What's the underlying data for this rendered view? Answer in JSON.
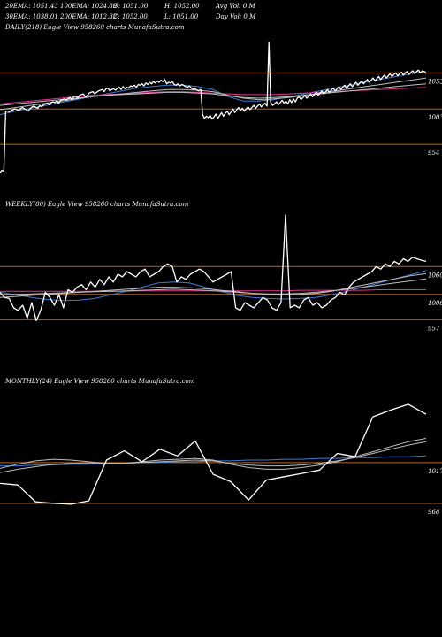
{
  "header": {
    "row1": [
      {
        "label": "20EMA: 1051.43"
      },
      {
        "label": "100EMA: 1024.89"
      },
      {
        "label": "O: 1051.00"
      },
      {
        "label": "H: 1052.00"
      },
      {
        "label": "Avg Vol: 0  M"
      }
    ],
    "row2": [
      {
        "label": "30EMA: 1038.01"
      },
      {
        "label": "200EMA: 1012.32"
      },
      {
        "label": "C: 1052.00"
      },
      {
        "label": "L: 1051.00"
      },
      {
        "label": "Day Vol: 0  M"
      }
    ]
  },
  "colors": {
    "background": "#000000",
    "price": "#ffffff",
    "level": "#b5651d",
    "ema_blue": "#3a7bd5",
    "ema_pink": "#e0338f",
    "ema_grey": "#bdbdbd"
  },
  "chart_data": [
    {
      "type": "line",
      "title": "DAILY(218) Eagle  View  958260  charts MunafaSutra.com",
      "levels": [
        {
          "value": 1053,
          "label": "1053"
        },
        {
          "value": 1003,
          "label": "1003"
        },
        {
          "value": 954,
          "label": "954"
        }
      ],
      "ylim": [
        915,
        1105
      ],
      "series": [
        {
          "role": "price",
          "color": "#ffffff",
          "values": [
            915,
            918,
            917,
            1000,
            1000,
            999,
            1001,
            1002,
            1003,
            1002,
            1001,
            1004,
            1005,
            1003,
            1002,
            1000,
            1004,
            1006,
            1007,
            1005,
            1004,
            1008,
            1006,
            1009,
            1010,
            1011,
            1009,
            1012,
            1013,
            1012,
            1014,
            1011,
            1015,
            1016,
            1017,
            1015,
            1018,
            1019,
            1016,
            1020,
            1021,
            1018,
            1022,
            1023,
            1024,
            1020,
            1021,
            1025,
            1026,
            1027,
            1024,
            1026,
            1028,
            1029,
            1030,
            1027,
            1031,
            1032,
            1028,
            1030,
            1031,
            1029,
            1032,
            1033,
            1030,
            1034,
            1031,
            1033,
            1032,
            1035,
            1034,
            1036,
            1033,
            1037,
            1036,
            1038,
            1035,
            1039,
            1037,
            1040,
            1038,
            1041,
            1039,
            1042,
            1040,
            1043,
            1041,
            1044,
            1038,
            1040,
            1039,
            1041,
            1037,
            1036,
            1038,
            1035,
            1037,
            1036,
            1034,
            1033,
            1035,
            1032,
            1030,
            1031,
            1029,
            1028,
            1030,
            995,
            990,
            993,
            991,
            994,
            989,
            992,
            996,
            990,
            994,
            998,
            993,
            997,
            1000,
            995,
            999,
            1003,
            998,
            1002,
            1005,
            1001,
            1004,
            1000,
            1003,
            1006,
            1002,
            1005,
            1008,
            1004,
            1007,
            1010,
            1006,
            1009,
            1011,
            1007,
            1095,
            1012,
            1008,
            1010,
            1013,
            1009,
            1012,
            1015,
            1011,
            1014,
            1010,
            1016,
            1012,
            1017,
            1013,
            1018,
            1020,
            1016,
            1019,
            1022,
            1018,
            1021,
            1024,
            1020,
            1023,
            1026,
            1022,
            1025,
            1028,
            1024,
            1027,
            1030,
            1026,
            1029,
            1032,
            1028,
            1031,
            1034,
            1030,
            1033,
            1036,
            1032,
            1035,
            1038,
            1034,
            1037,
            1040,
            1036,
            1039,
            1042,
            1038,
            1041,
            1044,
            1040,
            1043,
            1046,
            1042,
            1045,
            1048,
            1044,
            1047,
            1050,
            1046,
            1049,
            1052,
            1048,
            1051,
            1053,
            1049,
            1052,
            1054,
            1050,
            1053,
            1055,
            1051,
            1054,
            1056,
            1052,
            1055,
            1057,
            1053,
            1056,
            1055,
            1052
          ]
        },
        {
          "role": "ema",
          "color": "#3a7bd5",
          "values": [
            995,
            1000,
            1004,
            1008,
            1012,
            1016,
            1020,
            1024,
            1028,
            1032,
            1034,
            1036,
            1036,
            1034,
            1030,
            1020,
            1014,
            1014,
            1016,
            1020,
            1024,
            1028,
            1032,
            1036,
            1040,
            1044,
            1048,
            1052,
            1055
          ]
        },
        {
          "role": "ema",
          "color": "#e0338f",
          "values": [
            1010,
            1012,
            1014,
            1016,
            1018,
            1020,
            1022,
            1023,
            1024,
            1025,
            1026,
            1027,
            1027,
            1026,
            1025,
            1024,
            1023,
            1023,
            1023,
            1024,
            1025,
            1026,
            1027,
            1028,
            1029,
            1030,
            1031,
            1032,
            1033
          ]
        },
        {
          "role": "ema",
          "color": "#bdbdbd",
          "values": [
            1002,
            1005,
            1008,
            1011,
            1014,
            1017,
            1020,
            1022,
            1024,
            1026,
            1028,
            1030,
            1030,
            1029,
            1027,
            1022,
            1018,
            1016,
            1017,
            1019,
            1022,
            1025,
            1028,
            1031,
            1034,
            1037,
            1040,
            1043,
            1046
          ]
        },
        {
          "role": "ema",
          "color": "#bdbdbd",
          "values": [
            1008,
            1010,
            1012,
            1014,
            1016,
            1018,
            1020,
            1022,
            1023,
            1024,
            1025,
            1026,
            1026,
            1025,
            1024,
            1021,
            1019,
            1018,
            1019,
            1020,
            1022,
            1024,
            1026,
            1028,
            1030,
            1032,
            1034,
            1036,
            1038
          ]
        }
      ]
    },
    {
      "type": "line",
      "title": "WEEKLY(80) Eagle  View  958260  charts MunafaSutra.com",
      "levels": [
        {
          "value": 1060,
          "label": "1060"
        },
        {
          "value": 1006,
          "label": "1006"
        },
        {
          "value": 957,
          "label": "957"
        }
      ],
      "ylim": [
        925,
        1165
      ],
      "series": [
        {
          "role": "price",
          "color": "#ffffff",
          "values": [
            1010,
            1000,
            998,
            980,
            975,
            985,
            960,
            990,
            955,
            975,
            1010,
            1000,
            985,
            1005,
            980,
            1015,
            1010,
            1020,
            1025,
            1015,
            1030,
            1020,
            1035,
            1025,
            1040,
            1030,
            1045,
            1040,
            1050,
            1045,
            1040,
            1050,
            1055,
            1040,
            1045,
            1050,
            1060,
            1065,
            1060,
            1030,
            1040,
            1035,
            1045,
            1050,
            1055,
            1050,
            1040,
            1030,
            1035,
            1040,
            1045,
            1050,
            980,
            975,
            990,
            985,
            980,
            990,
            1000,
            995,
            980,
            975,
            990,
            1160,
            980,
            985,
            980,
            995,
            1000,
            985,
            990,
            980,
            985,
            995,
            1000,
            1010,
            1005,
            1020,
            1030,
            1035,
            1040,
            1045,
            1050,
            1060,
            1055,
            1065,
            1060,
            1070,
            1065,
            1075,
            1070,
            1078,
            1075,
            1072,
            1070
          ]
        },
        {
          "role": "ema",
          "color": "#3a7bd5",
          "values": [
            1010,
            1005,
            1000,
            996,
            994,
            995,
            998,
            1005,
            1012,
            1020,
            1028,
            1030,
            1028,
            1020,
            1012,
            1004,
            1000,
            998,
            997,
            998,
            1000,
            1005,
            1012,
            1020,
            1028,
            1036,
            1044,
            1052
          ]
        },
        {
          "role": "ema",
          "color": "#e0338f",
          "values": [
            1012,
            1012,
            1012,
            1012,
            1012,
            1012,
            1012,
            1012,
            1012,
            1013,
            1013,
            1013,
            1013,
            1013,
            1013,
            1013,
            1013,
            1013,
            1013,
            1014,
            1014,
            1014,
            1014,
            1014,
            1015,
            1015,
            1015,
            1015
          ]
        },
        {
          "role": "ema",
          "color": "#bdbdbd",
          "values": [
            1000,
            1002,
            1004,
            1006,
            1008,
            1010,
            1012,
            1014,
            1016,
            1018,
            1020,
            1020,
            1019,
            1017,
            1014,
            1011,
            1008,
            1006,
            1005,
            1006,
            1008,
            1012,
            1018,
            1024,
            1030,
            1036,
            1042,
            1046
          ]
        },
        {
          "role": "ema",
          "color": "#bdbdbd",
          "values": [
            1005,
            1006,
            1007,
            1008,
            1009,
            1010,
            1011,
            1012,
            1013,
            1014,
            1015,
            1016,
            1015,
            1014,
            1012,
            1010,
            1008,
            1007,
            1007,
            1008,
            1010,
            1013,
            1016,
            1020,
            1024,
            1028,
            1032,
            1036
          ]
        }
      ]
    },
    {
      "type": "line",
      "title": "MONTHLY(24) Eagle  View  958260  charts MunafaSutra.com",
      "levels": [
        {
          "value": 1017,
          "label": "1017"
        },
        {
          "value": 968,
          "label": "968"
        }
      ],
      "ylim": [
        935,
        1105
      ],
      "series": [
        {
          "role": "price",
          "color": "#ffffff",
          "values": [
            992,
            990,
            970,
            968,
            967,
            971,
            1020,
            1031,
            1018,
            1033,
            1025,
            1043,
            1003,
            994,
            972,
            996,
            1000,
            1004,
            1008,
            1028,
            1024,
            1072,
            1080,
            1087,
            1075
          ]
        },
        {
          "role": "ema",
          "color": "#3a7bd5",
          "values": [
            1013,
            1013,
            1014,
            1014,
            1015,
            1015,
            1016,
            1016,
            1017,
            1017,
            1018,
            1018,
            1019,
            1019,
            1020,
            1020,
            1021,
            1021,
            1022,
            1022,
            1023,
            1023,
            1024,
            1024,
            1025
          ]
        },
        {
          "role": "ema",
          "color": "#bdbdbd",
          "values": [
            1010,
            1015,
            1019,
            1021,
            1020,
            1018,
            1016,
            1016,
            1018,
            1020,
            1021,
            1022,
            1020,
            1015,
            1011,
            1009,
            1009,
            1011,
            1014,
            1018,
            1024,
            1030,
            1036,
            1042,
            1046
          ]
        },
        {
          "role": "ema",
          "color": "#bdbdbd",
          "values": [
            1005,
            1009,
            1012,
            1015,
            1016,
            1016,
            1016,
            1016,
            1017,
            1018,
            1019,
            1020,
            1019,
            1016,
            1014,
            1013,
            1013,
            1014,
            1016,
            1019,
            1023,
            1028,
            1033,
            1038,
            1042
          ]
        }
      ]
    }
  ]
}
